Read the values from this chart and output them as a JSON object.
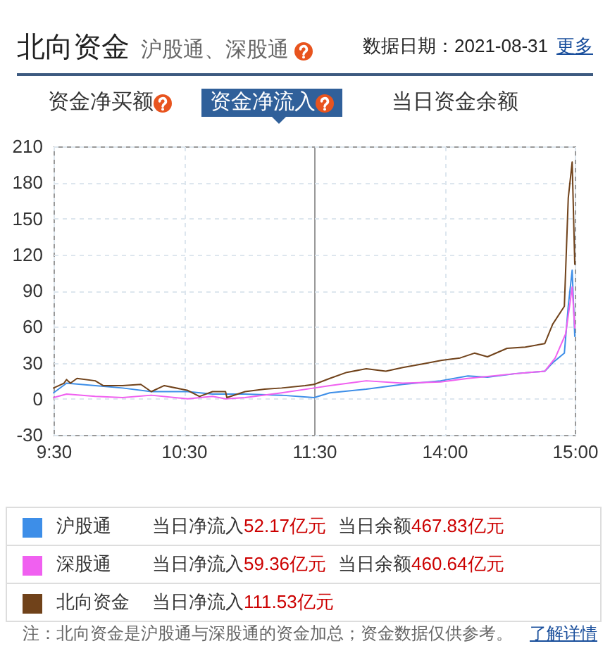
{
  "chart_data": [
    {
      "type": "line",
      "title": "北向资金",
      "subtitle": "沪股通、深股通",
      "xlim": [
        9.5,
        11.5
      ],
      "xticks": [
        {
          "value": 9.5,
          "label": "9:30"
        },
        {
          "value": 10.5,
          "label": "10:30"
        },
        {
          "value": 11.5,
          "label": "11:30"
        }
      ],
      "ylim": [
        -30,
        210
      ],
      "yticks": [
        -30,
        0,
        30,
        60,
        90,
        120,
        150,
        180,
        210
      ],
      "grid": true,
      "legend": "bottom",
      "line_style": "solid",
      "series": [
        {
          "name": "沪股通",
          "color": "#3d8ee8",
          "x": [
            9.5,
            9.6,
            9.82,
            10.03,
            10.25,
            10.53,
            10.72,
            10.97,
            11.25,
            11.5
          ],
          "values": [
            5,
            13,
            11,
            9,
            6,
            6,
            4,
            4,
            3,
            1
          ]
        },
        {
          "name": "深股通",
          "color": "#f060f0",
          "x": [
            9.5,
            9.6,
            9.82,
            10.03,
            10.25,
            10.53,
            10.72,
            10.82,
            10.97,
            11.25,
            11.5
          ],
          "values": [
            1,
            4,
            2,
            1,
            3,
            0,
            2,
            0,
            1,
            5,
            9
          ]
        },
        {
          "name": "北向资金",
          "color": "#70421a",
          "x": [
            9.5,
            9.58,
            9.6,
            9.63,
            9.68,
            9.82,
            9.88,
            10.03,
            10.17,
            10.25,
            10.35,
            10.53,
            10.62,
            10.72,
            10.82,
            10.83,
            10.97,
            11.12,
            11.25,
            11.43,
            11.5
          ],
          "values": [
            9,
            13,
            16,
            13,
            17,
            15,
            11,
            11,
            12,
            6,
            11,
            7,
            2,
            6,
            6,
            1,
            6,
            8,
            9,
            11,
            12
          ]
        }
      ],
      "annotations": [
        "数据日期：2021-08-31",
        "更多",
        "资金净买额",
        "资金净流入",
        "当日资金余额",
        "当日净流入52.17亿元",
        "当日余额467.83亿元",
        "当日净流入59.36亿元",
        "当日余额460.64亿元",
        "当日净流入111.53亿元",
        "注：北向资金是沪股通与深股通的资金加总；资金数据仅供参考。",
        "了解详情"
      ]
    },
    {
      "type": "line",
      "xlim": [
        13,
        15
      ],
      "xticks": [
        {
          "value": 14,
          "label": "14:00"
        },
        {
          "value": 15,
          "label": "15:00"
        }
      ],
      "ylim": [
        -30,
        210
      ],
      "yticks": [
        -30,
        0,
        30,
        60,
        90,
        120,
        150,
        180,
        210
      ],
      "tick_labels": "x",
      "grid": true,
      "line_style": "solid",
      "series": [
        {
          "color": "#3d8ee8",
          "x": [
            13,
            13.12,
            13.4,
            13.68,
            13.97,
            14.18,
            14.33,
            14.55,
            14.77,
            14.83,
            14.92,
            14.95,
            14.98,
            15
          ],
          "values": [
            1,
            5,
            8,
            12,
            15,
            19,
            18,
            21,
            23,
            30,
            38,
            77,
            107,
            52
          ]
        },
        {
          "color": "#f060f0",
          "x": [
            13,
            13.12,
            13.4,
            13.68,
            13.97,
            14.18,
            14.55,
            14.77,
            14.85,
            14.93,
            14.97,
            14.98,
            15
          ],
          "values": [
            9,
            11,
            15,
            13,
            14,
            17,
            21,
            23,
            34,
            54,
            85,
            93,
            59
          ]
        },
        {
          "color": "#70421a",
          "x": [
            13,
            13.12,
            13.25,
            13.4,
            13.55,
            13.68,
            13.83,
            13.98,
            14.12,
            14.23,
            14.33,
            14.48,
            14.62,
            14.77,
            14.83,
            14.92,
            14.95,
            14.98,
            15
          ],
          "values": [
            12,
            17,
            22,
            25,
            23,
            26,
            29,
            32,
            34,
            38,
            35,
            42,
            43,
            46,
            62,
            77,
            167,
            197,
            112
          ]
        }
      ]
    }
  ]
}
